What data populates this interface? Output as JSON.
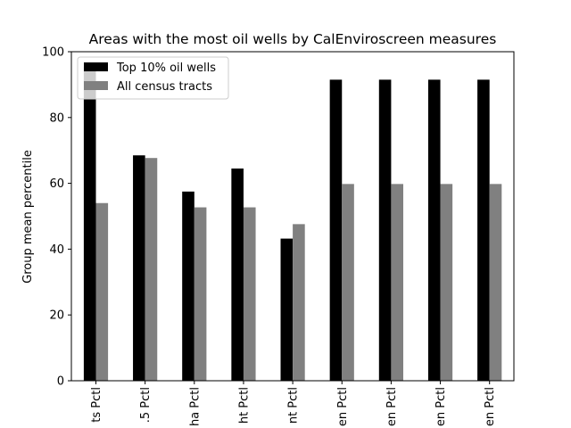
{
  "chart_data": {
    "type": "bar",
    "title": "Areas with the most oil wells by CalEnviroscreen measures",
    "xlabel": "",
    "ylabel": "Group mean percentile",
    "ylim": [
      0,
      100
    ],
    "yticks": [
      0,
      20,
      40,
      60,
      80,
      100
    ],
    "categories": [
      "ts Pctl",
      ".5 Pctl",
      "ha Pctl",
      "ht Pctl",
      "nt Pctl",
      "en Pctl",
      "en Pctl",
      "en Pctl",
      "en Pctl"
    ],
    "series": [
      {
        "name": "Top 10% oil wells",
        "color": "#000000",
        "values": [
          95.5,
          68.5,
          57.5,
          64.5,
          43.2,
          91.5,
          91.5,
          91.5,
          91.5
        ]
      },
      {
        "name": "All census tracts",
        "color": "#808080",
        "values": [
          54.0,
          67.7,
          52.7,
          52.7,
          47.6,
          59.8,
          59.8,
          59.8,
          59.8
        ]
      }
    ],
    "legend_position": "top-left",
    "grid": false
  }
}
